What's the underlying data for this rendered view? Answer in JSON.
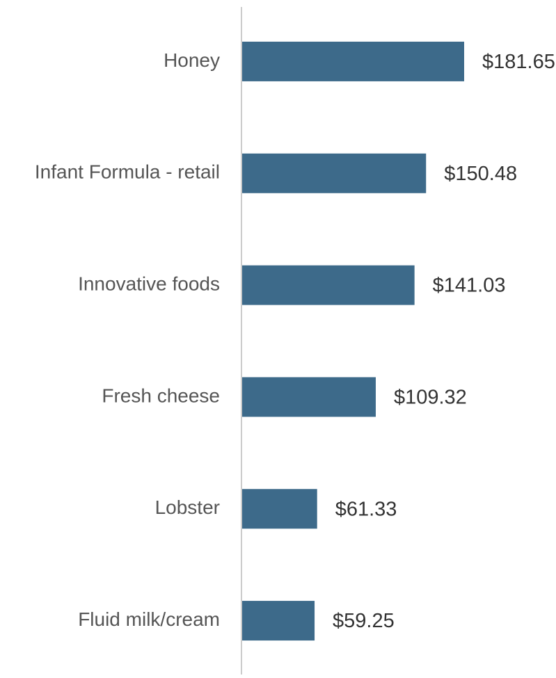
{
  "chart_data": {
    "type": "bar",
    "orientation": "horizontal",
    "categories": [
      "Honey",
      "Infant Formula - retail",
      "Innovative foods",
      "Fresh cheese",
      "Lobster",
      "Fluid milk/cream"
    ],
    "values": [
      181.65,
      150.48,
      141.03,
      109.32,
      61.33,
      59.25
    ],
    "value_labels": [
      "$181.65",
      "$150.48",
      "$141.03",
      "$109.32",
      "$61.33",
      "$59.25"
    ],
    "color": "#3d6a8a"
  }
}
